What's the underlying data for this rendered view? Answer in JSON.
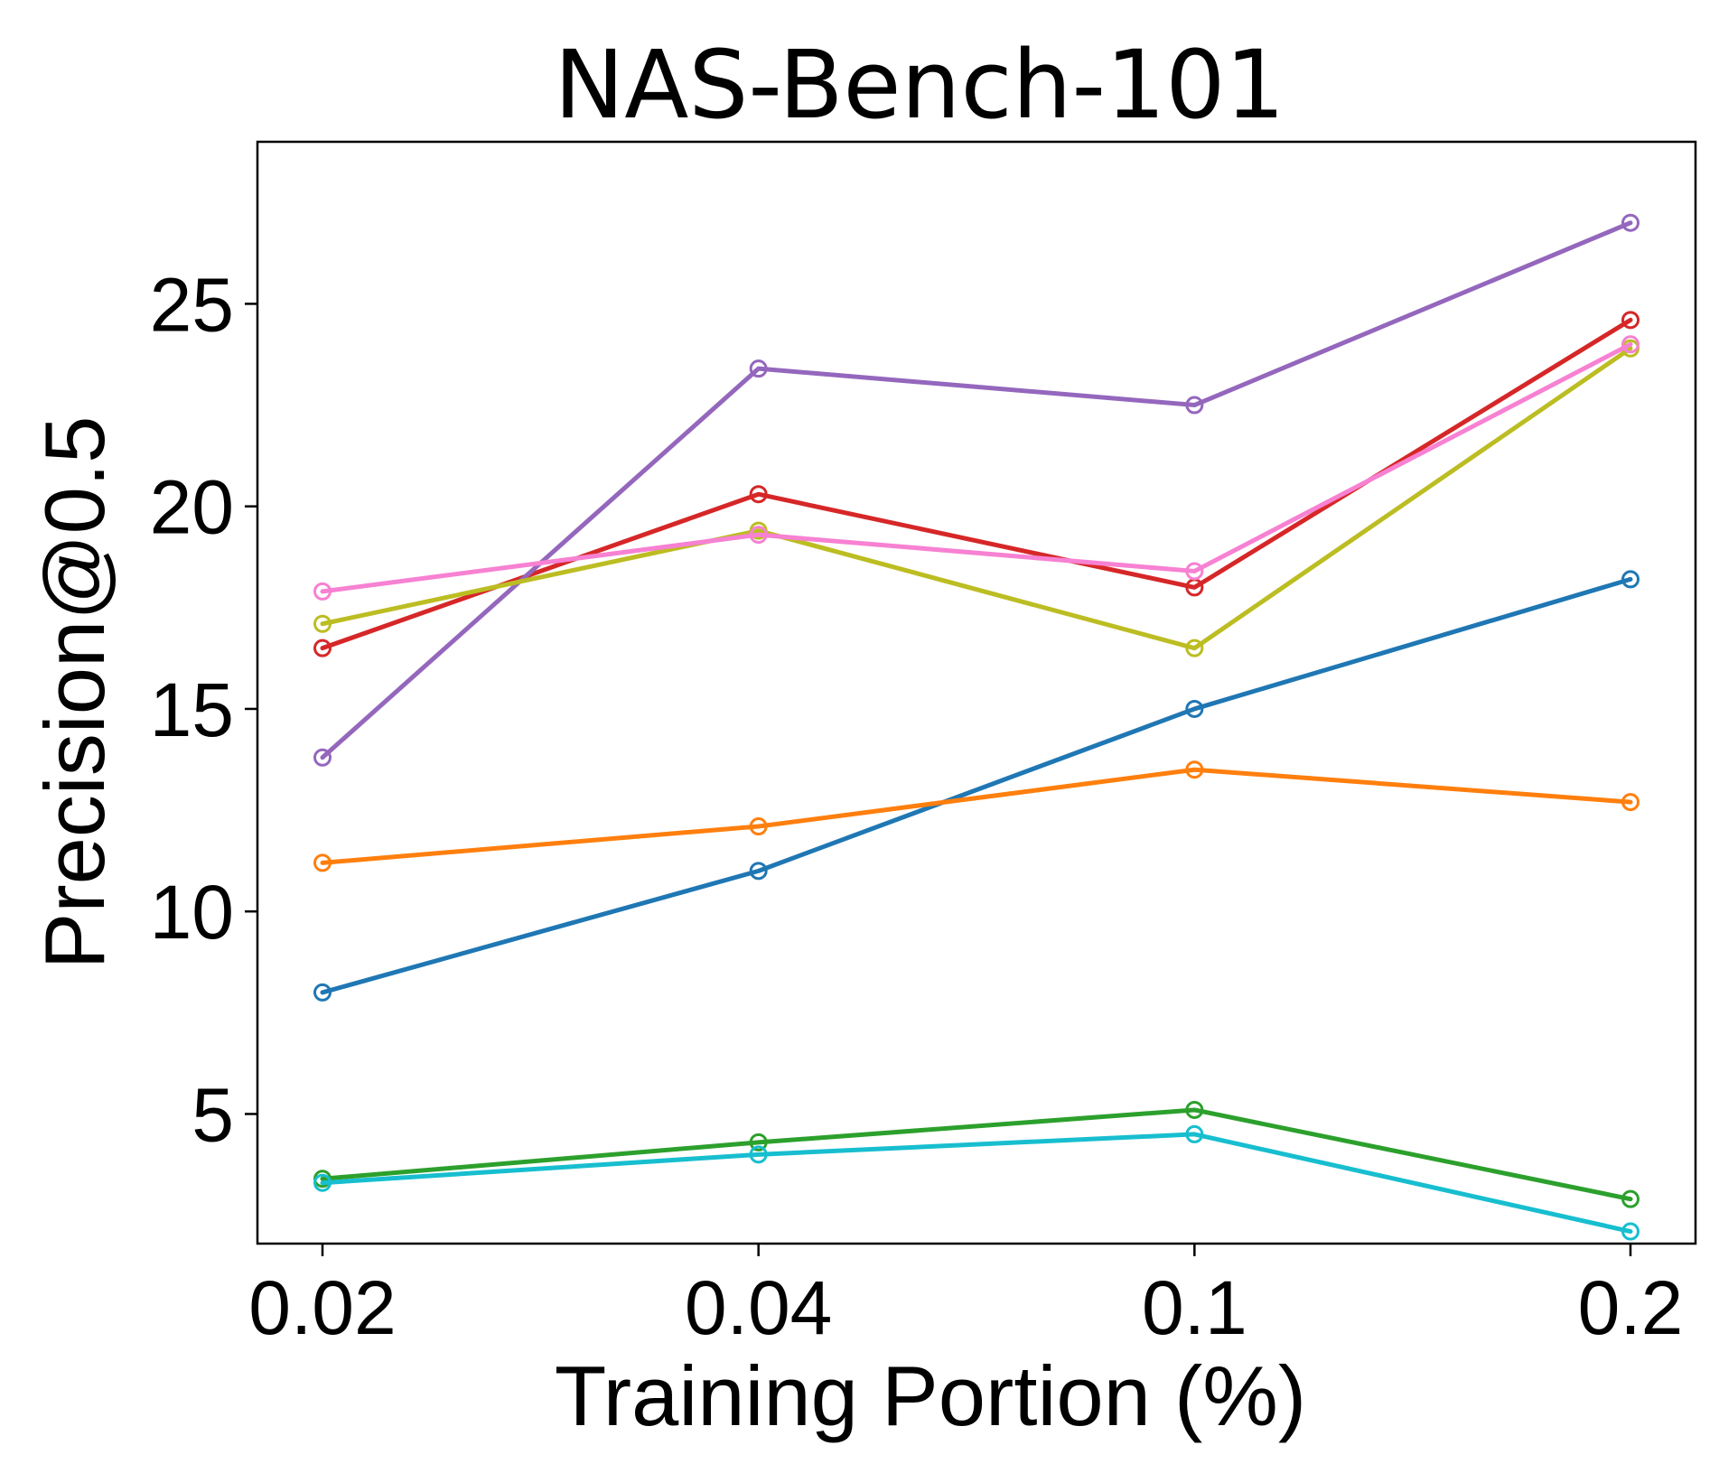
{
  "chart_data": {
    "type": "line",
    "title": "NAS-Bench-101",
    "xlabel": "Training Portion (%)",
    "ylabel": "Precision@0.5",
    "categories": [
      "0.02",
      "0.04",
      "0.1",
      "0.2"
    ],
    "ylim": [
      1.8,
      29.0
    ],
    "yticks": [
      5,
      10,
      15,
      20,
      25
    ],
    "grid": false,
    "legend": "none",
    "series": [
      {
        "name": "blue",
        "color": "#1f77b4",
        "values": [
          8.0,
          11.0,
          15.0,
          18.2
        ]
      },
      {
        "name": "orange",
        "color": "#ff7f0e",
        "values": [
          11.2,
          12.1,
          13.5,
          12.7
        ]
      },
      {
        "name": "green",
        "color": "#2ca02c",
        "values": [
          3.4,
          4.3,
          5.1,
          2.9
        ]
      },
      {
        "name": "red",
        "color": "#d62728",
        "values": [
          16.5,
          20.3,
          18.0,
          24.6
        ]
      },
      {
        "name": "purple",
        "color": "#9467bd",
        "values": [
          13.8,
          23.4,
          22.5,
          27.0
        ]
      },
      {
        "name": "olive",
        "color": "#bcbd22",
        "values": [
          17.1,
          19.4,
          16.5,
          23.9
        ]
      },
      {
        "name": "pink",
        "color": "#f781d2",
        "values": [
          17.9,
          19.3,
          18.4,
          24.0
        ]
      },
      {
        "name": "cyan",
        "color": "#17becf",
        "values": [
          3.3,
          4.0,
          4.5,
          2.1
        ]
      }
    ]
  }
}
